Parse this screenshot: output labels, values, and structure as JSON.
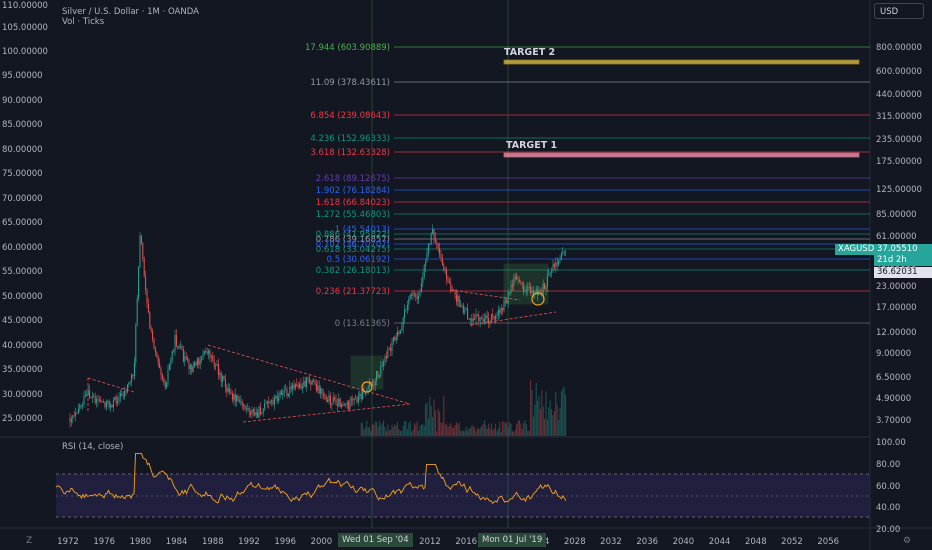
{
  "header": {
    "title": "Silver / U.S. Dollar · 1M · OANDA",
    "volume_label": "Vol · Ticks",
    "currency": "USD"
  },
  "left_axis": [
    "110.00000",
    "105.00000",
    "100.00000",
    "95.00000",
    "90.00000",
    "85.00000",
    "80.00000",
    "75.00000",
    "70.00000",
    "65.00000",
    "60.00000",
    "55.00000",
    "50.00000",
    "45.00000",
    "40.00000",
    "35.00000",
    "30.00000",
    "25.00000"
  ],
  "right_axis": [
    "800.00000",
    "600.00000",
    "440.00000",
    "315.00000",
    "235.00000",
    "175.00000",
    "125.00000",
    "85.00000",
    "61.00000",
    "45.00000",
    "23.00000",
    "17.00000",
    "12.00000",
    "9.00000",
    "6.50000",
    "4.90000",
    "3.70000"
  ],
  "rsi_axis": [
    "100.00",
    "80.00",
    "60.00",
    "40.00",
    "20.00"
  ],
  "x_axis": [
    "1972",
    "1976",
    "1980",
    "1984",
    "1988",
    "1992",
    "1996",
    "2000",
    "2004",
    "2008",
    "2012",
    "2016",
    "2020",
    "2024",
    "2028",
    "2032",
    "2036",
    "2040",
    "2044",
    "2048",
    "2052",
    "2056"
  ],
  "fib_levels": [
    {
      "label": "17.944 (603.90889)",
      "color": "#4caf50"
    },
    {
      "label": "11.09 (378.43611)",
      "color": "#9598a1"
    },
    {
      "label": "6.854 (239.08643)",
      "color": "#f23645"
    },
    {
      "label": "4.236 (152.96333)",
      "color": "#089981"
    },
    {
      "label": "3.618 (132.63328)",
      "color": "#f23645"
    },
    {
      "label": "2.618 (89.12675)",
      "color": "#673ab7"
    },
    {
      "label": "1.902 (76.18284)",
      "color": "#2962ff"
    },
    {
      "label": "1.618 (66.84023)",
      "color": "#f23645"
    },
    {
      "label": "1.272 (55.46803)",
      "color": "#089981"
    },
    {
      "label": "1 (45.54013)",
      "color": "#2962ff"
    },
    {
      "label": "0.886 (41.95822)",
      "color": "#089981"
    },
    {
      "label": "0.786 (39.16857)",
      "color": "#9598a1"
    },
    {
      "label": "0.702 (36.70707)",
      "color": "#2962ff"
    },
    {
      "label": "0.618 (33.04275)",
      "color": "#089981"
    },
    {
      "label": "0.5 (30.06192)",
      "color": "#2962ff"
    },
    {
      "label": "0.382 (26.18013)",
      "color": "#089981"
    },
    {
      "label": "0.236 (21.37723)",
      "color": "#f23645"
    },
    {
      "label": "0 (13.61365)",
      "color": "#787b86"
    }
  ],
  "targets": {
    "target1": "TARGET 1",
    "target2": "TARGET 2"
  },
  "price_tags": {
    "symbol": "XAGUSD",
    "price": "37.05510",
    "countdown": "21d 2h",
    "low": "36.62031"
  },
  "rsi": {
    "label": "RSI (14, close)"
  },
  "date_tags": [
    "Wed 01 Sep '04",
    "Mon 01 Jul '19"
  ],
  "colors": {
    "up": "#26a69a",
    "down": "#ef5350",
    "rsi": "#f7a21b",
    "background": "#131722"
  }
}
